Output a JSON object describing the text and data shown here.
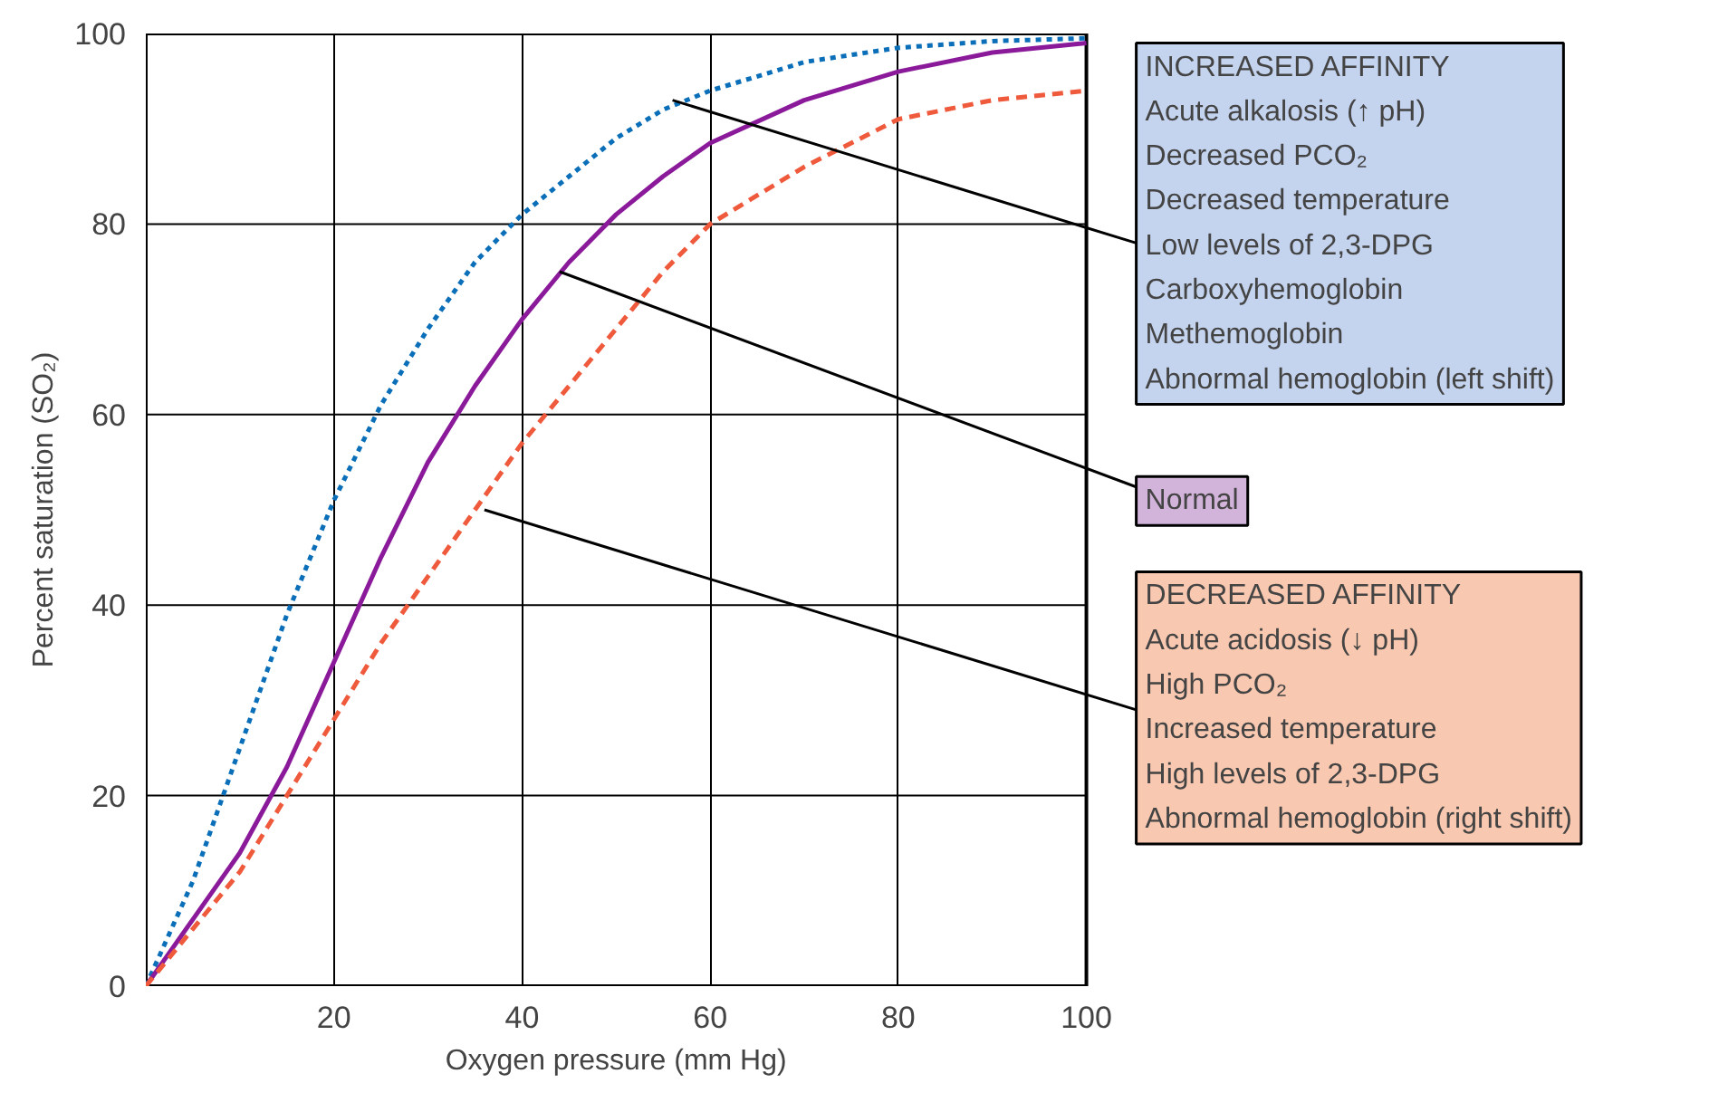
{
  "chart_data": {
    "type": "line",
    "x": [
      0,
      5,
      10,
      15,
      20,
      25,
      30,
      35,
      40,
      45,
      50,
      55,
      60,
      70,
      80,
      90,
      100
    ],
    "series": [
      {
        "color": "#0a6fb8",
        "line_style": "dotted",
        "values": [
          0,
          11,
          25,
          39,
          51,
          61,
          69,
          76,
          81,
          85,
          89,
          92,
          94,
          97,
          98.5,
          99.2,
          99.5
        ]
      },
      {
        "color": "#8b1a9b",
        "line_style": "solid",
        "values": [
          0,
          7,
          14,
          23,
          34,
          45,
          55,
          63,
          70,
          76,
          81,
          85,
          88.5,
          93,
          96,
          98,
          99
        ]
      },
      {
        "color": "#ef5a3c",
        "line_style": "dashed",
        "values": [
          0,
          6,
          12,
          20,
          28,
          36,
          43,
          50,
          57,
          63,
          69,
          75,
          80,
          86,
          91,
          93,
          94
        ]
      }
    ],
    "xlabel": "Oxygen pressure (mm Hg)",
    "ylabel": "Percent saturation (SO₂)",
    "xlim": [
      0,
      100
    ],
    "ylim": [
      0,
      100
    ],
    "xticks": [
      20,
      40,
      60,
      80,
      100
    ],
    "yticks": [
      0,
      20,
      40,
      60,
      80,
      100
    ],
    "grid": true,
    "annotations": [
      {
        "text": "INCREASED AFFINITY\nAcute alkalosis (↑ pH)\nDecreased PCO₂\nDecreased temperature\nLow levels of 2,3-DPG\nCarboxyhemoglobin\nMethemoglobin\nAbnormal hemoglobin (left shift)",
        "x": 56,
        "y": 93
      },
      {
        "text": "Normal",
        "x": 44,
        "y": 75
      },
      {
        "text": "DECREASED AFFINITY\nAcute acidosis (↓ pH)\nHigh PCO₂\nIncreased temperature\nHigh levels of 2,3-DPG\nAbnormal hemoglobin (right shift)",
        "x": 36,
        "y": 50
      }
    ]
  }
}
